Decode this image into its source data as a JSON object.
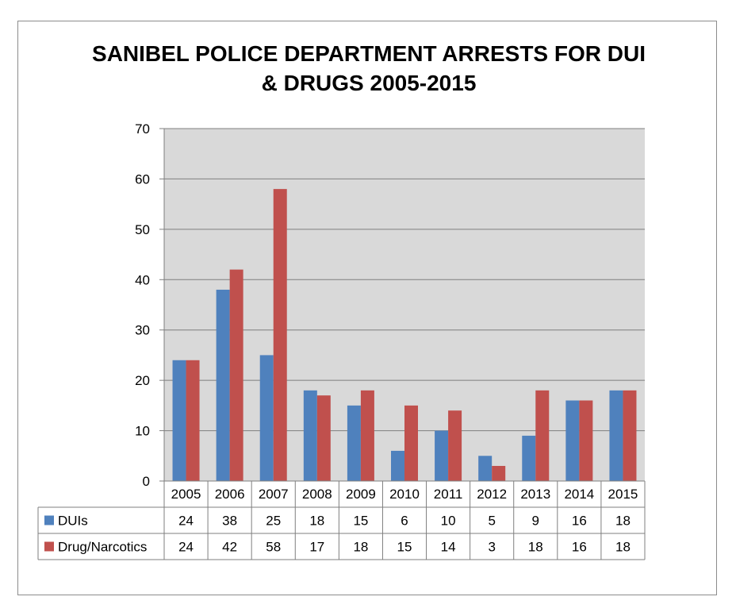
{
  "chart_data": {
    "type": "bar",
    "title_lines": [
      "SANIBEL POLICE DEPARTMENT ARRESTS FOR DUI",
      "& DRUGS 2005-2015"
    ],
    "categories": [
      "2005",
      "2006",
      "2007",
      "2008",
      "2009",
      "2010",
      "2011",
      "2012",
      "2013",
      "2014",
      "2015"
    ],
    "series": [
      {
        "name": "DUIs",
        "color": "#4f81bd",
        "values": [
          24,
          38,
          25,
          18,
          15,
          6,
          10,
          5,
          9,
          16,
          18
        ]
      },
      {
        "name": "Drug/Narcotics",
        "color": "#c0504d",
        "values": [
          24,
          42,
          58,
          17,
          18,
          15,
          14,
          3,
          18,
          16,
          18
        ]
      }
    ],
    "ylim": [
      0,
      70
    ],
    "yticks": [
      0,
      10,
      20,
      30,
      40,
      50,
      60,
      70
    ],
    "grid": true,
    "data_table": true,
    "plot_background": "#d9d9d9",
    "xlabel": "",
    "ylabel": ""
  }
}
